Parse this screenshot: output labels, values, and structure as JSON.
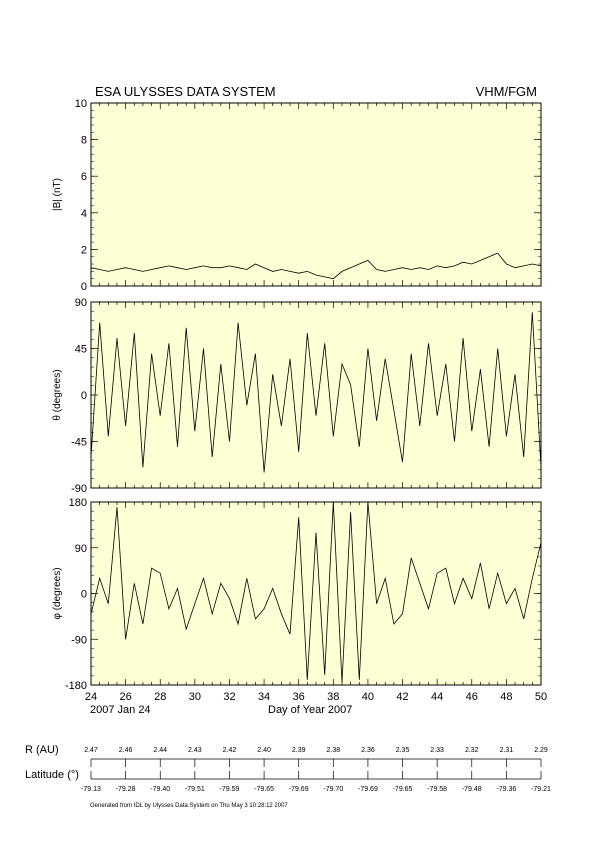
{
  "header": {
    "title": "ESA ULYSSES DATA SYSTEM",
    "instrument": "VHM/FGM"
  },
  "x_axis": {
    "start_date": "2007 Jan 24",
    "label": "Day of Year 2007"
  },
  "ephemeris": {
    "r_label": "R (AU)",
    "lat_label": "Latitude (°)",
    "r_values": [
      "2.47",
      "2.46",
      "2.44",
      "2.43",
      "2.42",
      "2.40",
      "2.39",
      "2.38",
      "2.36",
      "2.35",
      "2.33",
      "2.32",
      "2.31",
      "2.29"
    ],
    "lat_values": [
      "-79.13",
      "-79.28",
      "-79.40",
      "-79.51",
      "-79.59",
      "-79.65",
      "-79.69",
      "-79.70",
      "-79.69",
      "-79.65",
      "-79.58",
      "-79.48",
      "-79.36",
      "-79.21"
    ]
  },
  "footer": "Generated from IDL by Ulysses Data System on Thu May 3 10:28:12 2007",
  "colors": {
    "panel_bg": "#ffffd6",
    "trace": "#000000"
  },
  "chart_data": [
    {
      "type": "line",
      "ylabel": "|B| (nT)",
      "xlim": [
        24,
        50
      ],
      "ylim": [
        0,
        10
      ],
      "x_ticks": [
        24,
        26,
        28,
        30,
        32,
        34,
        36,
        38,
        40,
        42,
        44,
        46,
        48,
        50
      ],
      "y_ticks": [
        0,
        2,
        4,
        6,
        8,
        10
      ],
      "x": [
        24,
        24.5,
        25,
        25.5,
        26,
        26.5,
        27,
        27.5,
        28,
        28.5,
        29,
        29.5,
        30,
        30.5,
        31,
        31.5,
        32,
        32.5,
        33,
        33.5,
        34,
        34.5,
        35,
        35.5,
        36,
        36.5,
        37,
        37.5,
        38,
        38.5,
        39,
        39.5,
        40,
        40.5,
        41,
        41.5,
        42,
        42.5,
        43,
        43.5,
        44,
        44.5,
        45,
        45.5,
        46,
        46.5,
        47,
        47.5,
        48,
        48.5,
        49,
        49.5,
        50
      ],
      "values": [
        1.0,
        0.9,
        0.8,
        0.9,
        1.0,
        0.9,
        0.8,
        0.9,
        1.0,
        1.1,
        1.0,
        0.9,
        1.0,
        1.1,
        1.0,
        1.0,
        1.1,
        1.0,
        0.9,
        1.2,
        1.0,
        0.8,
        0.9,
        0.8,
        0.7,
        0.8,
        0.6,
        0.5,
        0.4,
        0.8,
        1.0,
        1.2,
        1.4,
        0.9,
        0.8,
        0.9,
        1.0,
        0.9,
        1.0,
        0.9,
        1.1,
        1.0,
        1.1,
        1.3,
        1.2,
        1.4,
        1.6,
        1.8,
        1.2,
        1.0,
        1.1,
        1.2,
        1.1
      ]
    },
    {
      "type": "line",
      "ylabel": "θ (degrees)",
      "xlim": [
        24,
        50
      ],
      "ylim": [
        -90,
        90
      ],
      "x_ticks": [
        24,
        26,
        28,
        30,
        32,
        34,
        36,
        38,
        40,
        42,
        44,
        46,
        48,
        50
      ],
      "y_ticks": [
        -90,
        -45,
        0,
        45,
        90
      ],
      "x": [
        24,
        24.5,
        25,
        25.5,
        26,
        26.5,
        27,
        27.5,
        28,
        28.5,
        29,
        29.5,
        30,
        30.5,
        31,
        31.5,
        32,
        32.5,
        33,
        33.5,
        34,
        34.5,
        35,
        35.5,
        36,
        36.5,
        37,
        37.5,
        38,
        38.5,
        39,
        39.5,
        40,
        40.5,
        41,
        41.5,
        42,
        42.5,
        43,
        43.5,
        44,
        44.5,
        45,
        45.5,
        46,
        46.5,
        47,
        47.5,
        48,
        48.5,
        49,
        49.5,
        50
      ],
      "values": [
        -60,
        70,
        -40,
        55,
        -30,
        60,
        -70,
        40,
        -20,
        50,
        -50,
        65,
        -35,
        45,
        -60,
        30,
        -45,
        70,
        -10,
        40,
        -75,
        20,
        -30,
        35,
        -55,
        60,
        -20,
        50,
        -40,
        30,
        10,
        -50,
        45,
        -25,
        35,
        -15,
        -65,
        40,
        -30,
        50,
        -20,
        30,
        -45,
        55,
        -35,
        25,
        -50,
        45,
        -40,
        20,
        -60,
        80,
        -70
      ]
    },
    {
      "type": "line",
      "ylabel": "φ (degrees)",
      "xlim": [
        24,
        50
      ],
      "ylim": [
        -180,
        180
      ],
      "x_ticks": [
        24,
        26,
        28,
        30,
        32,
        34,
        36,
        38,
        40,
        42,
        44,
        46,
        48,
        50
      ],
      "y_ticks": [
        -180,
        -90,
        0,
        90,
        180
      ],
      "x": [
        24,
        24.5,
        25,
        25.5,
        26,
        26.5,
        27,
        27.5,
        28,
        28.5,
        29,
        29.5,
        30,
        30.5,
        31,
        31.5,
        32,
        32.5,
        33,
        33.5,
        34,
        34.5,
        35,
        35.5,
        36,
        36.5,
        37,
        37.5,
        38,
        38.5,
        39,
        39.5,
        40,
        40.5,
        41,
        41.5,
        42,
        42.5,
        43,
        43.5,
        44,
        44.5,
        45,
        45.5,
        46,
        46.5,
        47,
        47.5,
        48,
        48.5,
        49,
        49.5,
        50
      ],
      "values": [
        -40,
        30,
        -20,
        170,
        -90,
        20,
        -60,
        50,
        40,
        -30,
        10,
        -70,
        -20,
        30,
        -40,
        20,
        -10,
        -60,
        30,
        -50,
        -30,
        10,
        -40,
        -80,
        150,
        -170,
        120,
        -160,
        180,
        -175,
        160,
        -170,
        180,
        -20,
        30,
        -60,
        -40,
        70,
        20,
        -30,
        40,
        50,
        -20,
        30,
        -10,
        60,
        -30,
        40,
        -20,
        10,
        -50,
        30,
        100
      ]
    }
  ]
}
